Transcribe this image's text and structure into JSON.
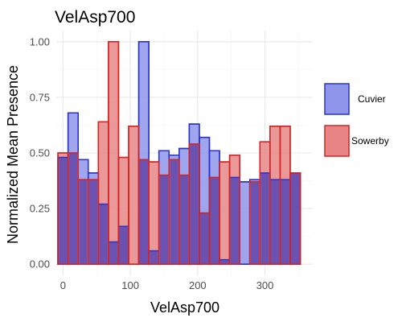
{
  "chart_data": {
    "type": "bar",
    "title": "VelAsp700",
    "xlabel": "VelAsp700",
    "ylabel": "Normalized Mean Presence",
    "xlim": [
      -10,
      371
    ],
    "ylim": [
      -0.05,
      1.05
    ],
    "x_ticks": [
      0,
      100,
      200,
      300
    ],
    "x_tick_labels": [
      "0",
      "100",
      "200",
      "300"
    ],
    "y_ticks": [
      0.0,
      0.25,
      0.5,
      0.75,
      1.0
    ],
    "y_tick_labels": [
      "0.00",
      "0.25",
      "0.50",
      "0.75",
      "1.00"
    ],
    "grid": true,
    "legend_position": "right",
    "bin_width": 15,
    "x": [
      0,
      15,
      30,
      45,
      60,
      75,
      90,
      105,
      120,
      135,
      150,
      165,
      180,
      195,
      210,
      225,
      240,
      255,
      270,
      285,
      300,
      315,
      330,
      345
    ],
    "series": [
      {
        "name": "Cuvier",
        "fill": "#8f96ea",
        "stroke": "#2a33cc",
        "values": [
          0.48,
          0.68,
          0.47,
          0.41,
          0.27,
          0.1,
          0.17,
          0.0,
          1.0,
          0.06,
          0.51,
          0.49,
          0.52,
          0.63,
          0.57,
          0.51,
          0.02,
          0.39,
          0.37,
          0.38,
          0.41,
          0.38,
          0.38,
          0.41
        ]
      },
      {
        "name": "Sowerby",
        "fill": "#e88686",
        "stroke": "#d42424",
        "values": [
          0.5,
          0.5,
          0.38,
          0.38,
          0.64,
          1.0,
          0.48,
          0.62,
          0.47,
          0.46,
          0.4,
          0.47,
          0.4,
          0.54,
          0.23,
          0.39,
          0.46,
          0.49,
          0.0,
          0.37,
          0.55,
          0.62,
          0.62,
          0.41
        ]
      }
    ],
    "overlap_fill": "#6c52b0"
  }
}
